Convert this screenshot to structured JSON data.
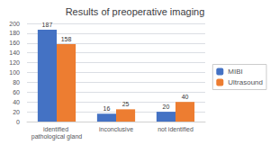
{
  "chart_data": {
    "type": "bar",
    "title": "Results of preoperative imaging",
    "categories": [
      "identified pathological gland",
      "inconclusive",
      "not identified"
    ],
    "series": [
      {
        "name": "MIBI",
        "color": "#4472C4",
        "values": [
          187,
          16,
          20
        ]
      },
      {
        "name": "Ultrasound",
        "color": "#ED7D31",
        "values": [
          158,
          25,
          40
        ]
      }
    ],
    "ylim": [
      0,
      200
    ],
    "yticks": [
      0,
      20,
      40,
      60,
      80,
      100,
      120,
      140,
      160,
      180,
      200
    ],
    "grid": true,
    "legend": "right",
    "data_labels": true
  }
}
